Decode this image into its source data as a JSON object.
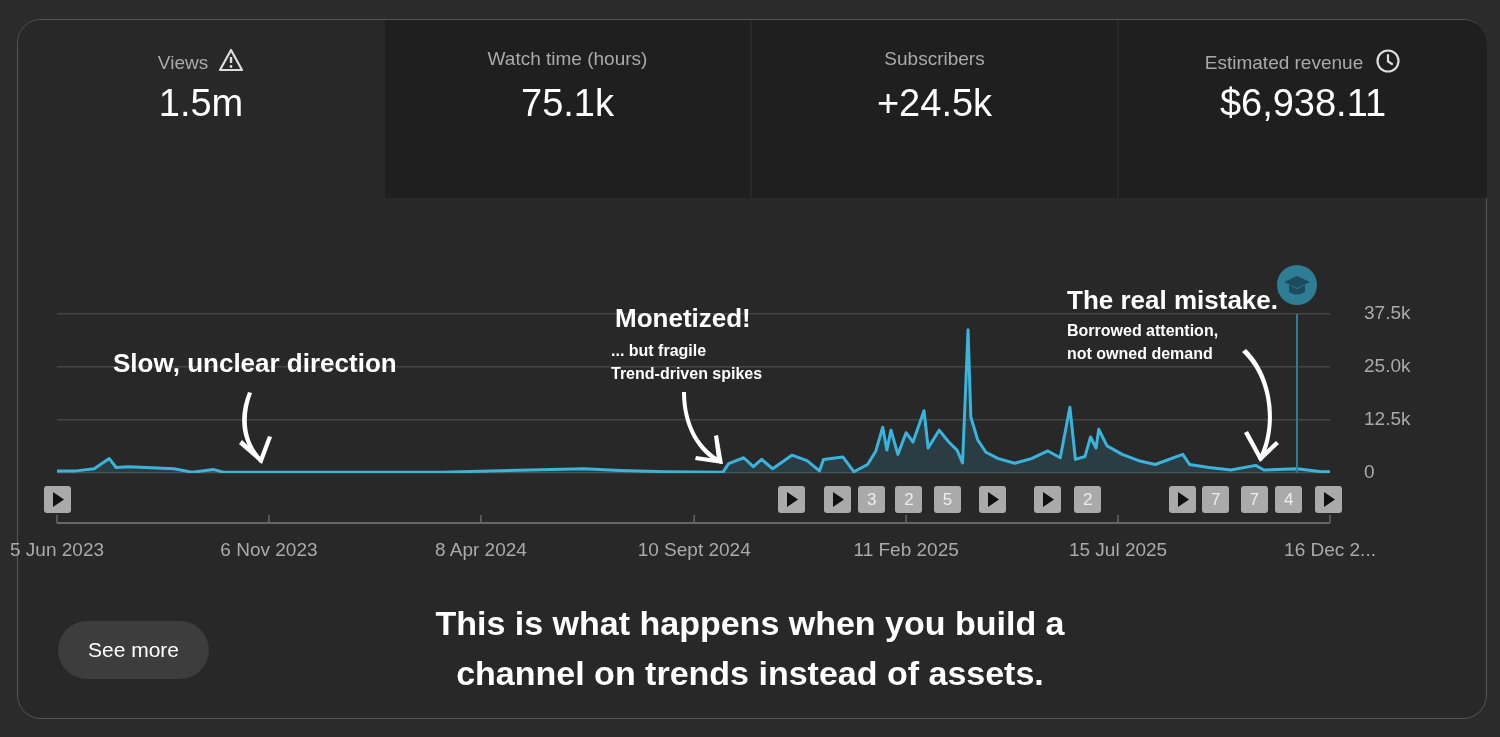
{
  "chart_data": {
    "type": "area",
    "x": [
      "2023-06-05",
      "2023-06-19",
      "2023-07-02",
      "2023-07-13",
      "2023-07-18",
      "2023-07-27",
      "2023-08-29",
      "2023-09-11",
      "2023-09-27",
      "2023-10-04",
      "2024-03-11",
      "2024-06-22",
      "2024-07-18",
      "2024-08-20",
      "2024-10-01",
      "2024-10-05",
      "2024-10-16",
      "2024-10-23",
      "2024-10-29",
      "2024-11-06",
      "2024-11-20",
      "2024-12-01",
      "2024-12-10",
      "2024-12-13",
      "2024-12-27",
      "2025-01-04",
      "2025-01-14",
      "2025-01-20",
      "2025-01-25",
      "2025-01-28",
      "2025-01-31",
      "2025-02-05",
      "2025-02-11",
      "2025-02-16",
      "2025-02-24",
      "2025-02-27",
      "2025-03-07",
      "2025-03-14",
      "2025-03-20",
      "2025-03-24",
      "2025-03-28",
      "2025-03-30",
      "2025-04-04",
      "2025-04-10",
      "2025-04-19",
      "2025-05-01",
      "2025-05-13",
      "2025-05-25",
      "2025-06-03",
      "2025-06-10",
      "2025-06-14",
      "2025-06-21",
      "2025-06-25",
      "2025-06-29",
      "2025-07-01",
      "2025-07-07",
      "2025-07-18",
      "2025-07-30",
      "2025-08-11",
      "2025-08-31",
      "2025-09-05",
      "2025-09-19",
      "2025-10-05",
      "2025-10-23",
      "2025-10-29",
      "2025-11-22",
      "2025-12-10",
      "2025-12-16"
    ],
    "series": [
      {
        "color": "#3ab4dc",
        "values": [
          500,
          500,
          1000,
          3400,
          1300,
          1500,
          1000,
          200,
          800,
          200,
          200,
          1000,
          600,
          300,
          200,
          2200,
          3600,
          1500,
          3200,
          1000,
          4200,
          2900,
          500,
          3200,
          3800,
          300,
          2000,
          5200,
          10800,
          5400,
          10100,
          4400,
          9500,
          7300,
          14700,
          5900,
          10100,
          7300,
          5400,
          2400,
          33800,
          13200,
          7800,
          4900,
          3400,
          2300,
          3400,
          5200,
          3600,
          15500,
          3200,
          3900,
          8500,
          5900,
          10300,
          6400,
          4400,
          2900,
          2000,
          4400,
          2000,
          1300,
          700,
          1800,
          700,
          1000,
          300,
          300
        ]
      }
    ],
    "xlim": [
      "2023-06-05",
      "2025-12-16"
    ],
    "xticks": [
      {
        "value": "2023-06-05",
        "label": "5 Jun 2023"
      },
      {
        "value": "2023-11-06",
        "label": "6 Nov 2023"
      },
      {
        "value": "2024-04-08",
        "label": "8 Apr 2024"
      },
      {
        "value": "2024-09-10",
        "label": "10 Sept 2024"
      },
      {
        "value": "2025-02-11",
        "label": "11 Feb 2025"
      },
      {
        "value": "2025-07-15",
        "label": "15 Jul 2025"
      },
      {
        "value": "2025-12-16",
        "label": "16 Dec 2..."
      }
    ],
    "ylim": [
      0,
      37500
    ],
    "yticks": [
      0,
      {
        "value": 12500,
        "label": "12.5k"
      },
      {
        "value": 25000,
        "label": "25.0k"
      },
      {
        "value": 37500,
        "label": "37.5k"
      }
    ],
    "grid": "y",
    "legend": false,
    "marker": "none",
    "ref_lines": [
      {
        "axis": "x",
        "value": "2025-11-22",
        "color": "#2f7c95"
      }
    ],
    "annotations": [
      "Views",
      "1.5m",
      "Watch time (hours)",
      "75.1k",
      "Subscribers",
      "+24.5k",
      "Estimated revenue",
      "$6,938.11",
      "Slow, unclear direction",
      "Monetized!",
      "... but fragile",
      "Trend-driven spikes",
      "The real mistake.",
      "Borrowed attention,",
      "not owned demand",
      "See more",
      "This is what happens when you build a channel on trends instead of assets.",
      "3",
      "2",
      "5",
      "2",
      "7",
      "7",
      "4"
    ]
  }
}
